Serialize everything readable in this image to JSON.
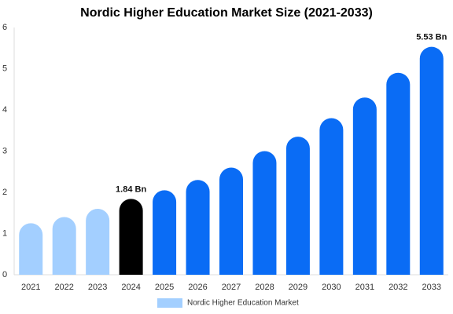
{
  "chart_data": {
    "type": "bar",
    "title": "Nordic Higher Education Market Size (2021-2033)",
    "categories": [
      "2021",
      "2022",
      "2023",
      "2024",
      "2025",
      "2026",
      "2027",
      "2028",
      "2029",
      "2030",
      "2031",
      "2032",
      "2033"
    ],
    "series": [
      {
        "name": "Nordic Higher Education Market",
        "color": "#a3cfff",
        "bar_colors": [
          "#a3cfff",
          "#a3cfff",
          "#a3cfff",
          "#000000",
          "#0a6cf5",
          "#0a6cf5",
          "#0a6cf5",
          "#0a6cf5",
          "#0a6cf5",
          "#0a6cf5",
          "#0a6cf5",
          "#0a6cf5",
          "#0a6cf5"
        ],
        "values": [
          1.25,
          1.4,
          1.6,
          1.84,
          2.05,
          2.3,
          2.6,
          3.0,
          3.35,
          3.8,
          4.3,
          4.9,
          5.53
        ],
        "value_labels": [
          null,
          null,
          null,
          "1.84 Bn",
          null,
          null,
          null,
          null,
          null,
          null,
          null,
          null,
          "5.53 Bn"
        ]
      }
    ],
    "ylim": [
      0,
      6
    ],
    "yticks": [
      0,
      1,
      2,
      3,
      4,
      5,
      6
    ],
    "grid": false,
    "legend": "bottom"
  }
}
